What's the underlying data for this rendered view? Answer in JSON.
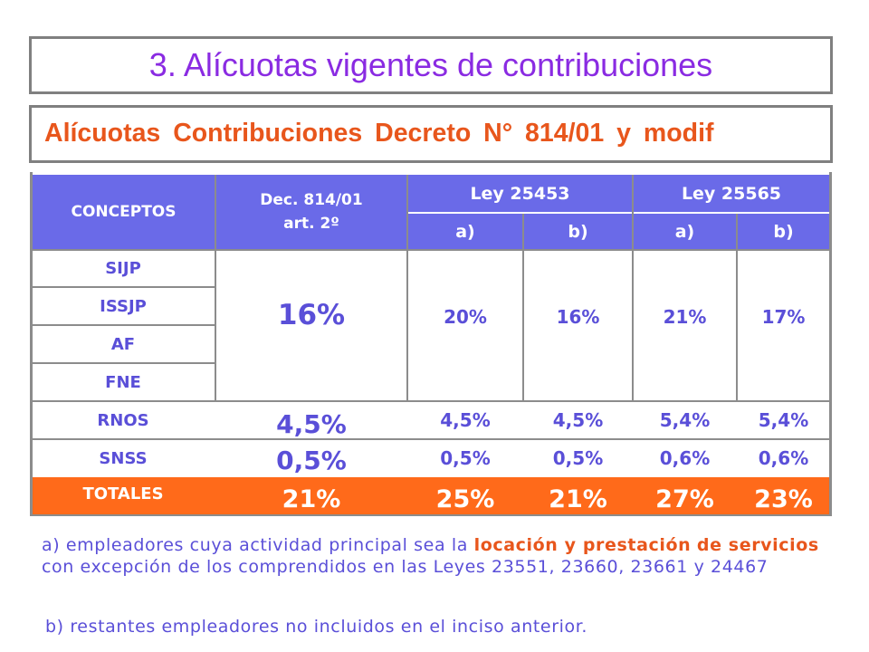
{
  "title": "3. Alícuotas vigentes de contribuciones",
  "subtitle": "Alícuotas Contribuciones Decreto N° 814/01 y modif",
  "colors": {
    "title": "#8a2be2",
    "subtitle": "#e8561c",
    "header_bg": "#6a6ae8",
    "body_text": "#5a4fd8",
    "totals_bg": "#ff6a1a"
  },
  "table": {
    "header": {
      "concepts": "CONCEPTOS",
      "dec_line1": "Dec. 814/01",
      "dec_line2": "art. 2º",
      "ley1": "Ley 25453",
      "ley2": "Ley 25565",
      "ley1_a": "a)",
      "ley1_b": "b)",
      "ley2_a": "a)",
      "ley2_b": "b)"
    },
    "concepts": [
      "SIJP",
      "ISSJP",
      "AF",
      "FNE",
      "RNOS",
      "SNSS"
    ],
    "group_values": {
      "dec": "16%",
      "ley1_a": "20%",
      "ley1_b": "16%",
      "ley2_a": "21%",
      "ley2_b": "17%"
    },
    "rnos": {
      "dec": "4,5%",
      "ley1_a": "4,5%",
      "ley1_b": "4,5%",
      "ley2_a": "5,4%",
      "ley2_b": "5,4%"
    },
    "snss": {
      "dec": "0,5%",
      "ley1_a": "0,5%",
      "ley1_b": "0,5%",
      "ley2_a": "0,6%",
      "ley2_b": "0,6%"
    },
    "totals": {
      "label": "TOTALES",
      "dec": "21%",
      "ley1_a": "25%",
      "ley1_b": "21%",
      "ley2_a": "27%",
      "ley2_b": "23%"
    }
  },
  "notes": {
    "a_prefix": "a) empleadores cuya actividad principal sea la ",
    "a_highlight1": "locación y prestación",
    "a_highlight2": "de servicios",
    "a_suffix": " con excepción de los comprendidos en las Leyes 23551, 23660, 23661 y 24467",
    "b": "b) restantes empleadores no incluidos en el inciso anterior."
  }
}
